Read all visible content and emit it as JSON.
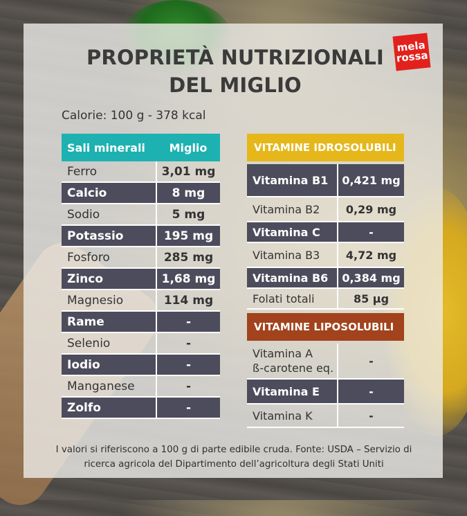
{
  "brand": {
    "line1": "mela",
    "line2": "rossa"
  },
  "title": {
    "line1": "PROPRIETÀ NUTRIZIONALI",
    "line2": "DEL MIGLIO"
  },
  "calories": "Calorie: 100 g - 378 kcal",
  "minerals": {
    "header": {
      "name": "Sali minerali",
      "value": "Miglio"
    },
    "rows": [
      {
        "name": "Ferro",
        "value": "3,01 mg"
      },
      {
        "name": "Calcio",
        "value": "8 mg"
      },
      {
        "name": "Sodio",
        "value": "5 mg"
      },
      {
        "name": "Potassio",
        "value": "195 mg"
      },
      {
        "name": "Fosforo",
        "value": "285 mg"
      },
      {
        "name": "Zinco",
        "value": "1,68 mg"
      },
      {
        "name": "Magnesio",
        "value": "114 mg"
      },
      {
        "name": "Rame",
        "value": "-"
      },
      {
        "name": "Selenio",
        "value": "-"
      },
      {
        "name": "Iodio",
        "value": "-"
      },
      {
        "name": "Manganese",
        "value": "-"
      },
      {
        "name": "Zolfo",
        "value": "-"
      }
    ]
  },
  "water_soluble": {
    "header": "VITAMINE IDROSOLUBILI",
    "rows": [
      {
        "name": "Vitamina B1",
        "value": "0,421 mg"
      },
      {
        "name": "Vitamina B2",
        "value": "0,29 mg"
      },
      {
        "name": "Vitamina C",
        "value": "-"
      },
      {
        "name": "Vitamina B3",
        "value": "4,72 mg"
      },
      {
        "name": "Vitamina B6",
        "value": "0,384 mg"
      },
      {
        "name": "Folati totali",
        "value": "85 µg"
      }
    ]
  },
  "fat_soluble": {
    "header": "VITAMINE LIPOSOLUBILI",
    "rows": [
      {
        "name_line1": "Vitamina A",
        "name_line2": "ß-carotene eq.",
        "value": "-"
      },
      {
        "name": "Vitamina E",
        "value": "-"
      },
      {
        "name": "Vitamina K",
        "value": "-"
      }
    ]
  },
  "footer": {
    "line1": "I valori si riferiscono a 100 g di parte edibile cruda. Fonte: USDA – Servizio di",
    "line2": "ricerca agricola del Dipartimento dell’agricoltura degli Stati Uniti"
  },
  "colors": {
    "mineral_header": "#1eb1b1",
    "water_soluble_header": "#e5b71a",
    "fat_soluble_header": "#a2431d",
    "dark_row": "#4d4c5c",
    "brand": "#e2211c"
  }
}
